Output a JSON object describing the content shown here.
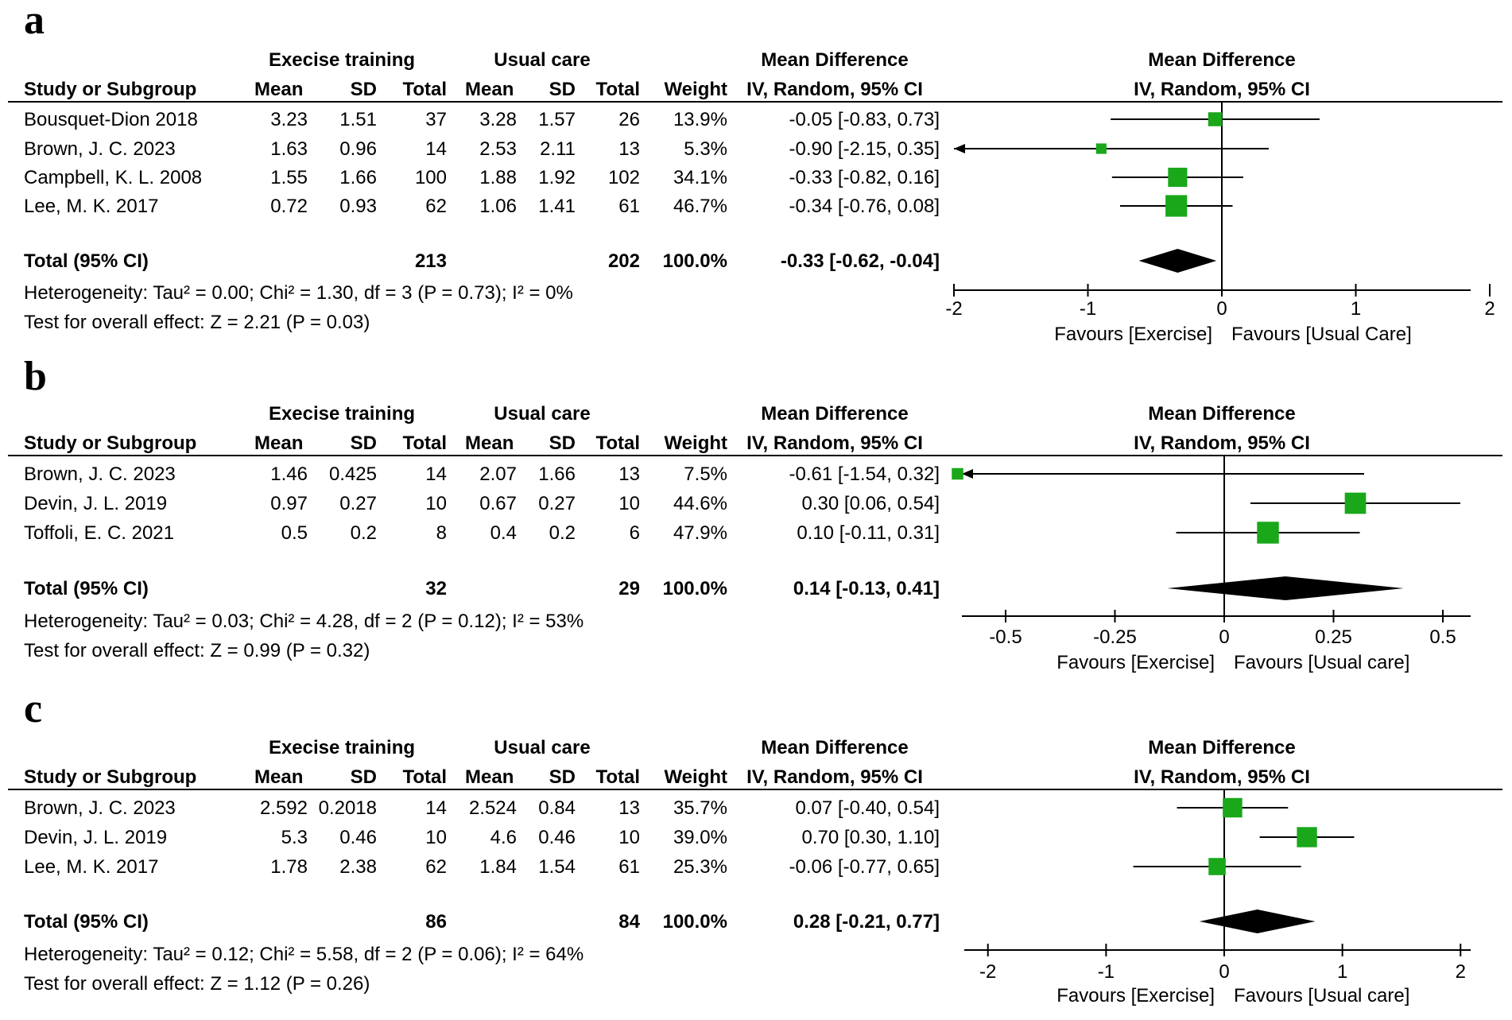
{
  "chart_data": [
    {
      "type": "forest",
      "panel_label": "a",
      "group_headers": {
        "experimental": "Execise training",
        "control": "Usual care"
      },
      "columns": [
        "Study or Subgroup",
        "Mean",
        "SD",
        "Total",
        "Mean",
        "SD",
        "Total",
        "Weight"
      ],
      "effect_header": [
        "Mean Difference",
        "IV, Random, 95% CI"
      ],
      "plot_header": [
        "Mean Difference",
        "IV, Random, 95% CI"
      ],
      "studies": [
        {
          "name": "Bousquet-Dion 2018",
          "exp_mean": "3.23",
          "exp_sd": "1.51",
          "exp_total": "37",
          "ctl_mean": "3.28",
          "ctl_sd": "1.57",
          "ctl_total": "26",
          "weight": "13.9%",
          "effect_text": "-0.05 [-0.83, 0.73]",
          "md": -0.05,
          "lo": -0.83,
          "hi": 0.73,
          "w": 13.9
        },
        {
          "name": "Brown, J. C. 2023",
          "exp_mean": "1.63",
          "exp_sd": "0.96",
          "exp_total": "14",
          "ctl_mean": "2.53",
          "ctl_sd": "2.11",
          "ctl_total": "13",
          "weight": "5.3%",
          "effect_text": "-0.90 [-2.15, 0.35]",
          "md": -0.9,
          "lo": -2.15,
          "hi": 0.35,
          "w": 5.3
        },
        {
          "name": "Campbell, K. L. 2008",
          "exp_mean": "1.55",
          "exp_sd": "1.66",
          "exp_total": "100",
          "ctl_mean": "1.88",
          "ctl_sd": "1.92",
          "ctl_total": "102",
          "weight": "34.1%",
          "effect_text": "-0.33 [-0.82, 0.16]",
          "md": -0.33,
          "lo": -0.82,
          "hi": 0.16,
          "w": 34.1
        },
        {
          "name": "Lee, M. K. 2017",
          "exp_mean": "0.72",
          "exp_sd": "0.93",
          "exp_total": "62",
          "ctl_mean": "1.06",
          "ctl_sd": "1.41",
          "ctl_total": "61",
          "weight": "46.7%",
          "effect_text": "-0.34 [-0.76, 0.08]",
          "md": -0.34,
          "lo": -0.76,
          "hi": 0.08,
          "w": 46.7
        }
      ],
      "total": {
        "label": "Total (95% CI)",
        "exp_total": "213",
        "ctl_total": "202",
        "weight": "100.0%",
        "effect_text": "-0.33 [-0.62, -0.04]",
        "md": -0.33,
        "lo": -0.62,
        "hi": -0.04
      },
      "heterogeneity": "Heterogeneity: Tau² = 0.00; Chi² = 1.30, df = 3 (P = 0.73); I² = 0%",
      "overall_effect": "Test for overall effect: Z = 2.21 (P = 0.03)",
      "xlim": [
        -2,
        2
      ],
      "ticks": [
        -2,
        -1,
        0,
        1,
        2
      ],
      "tick_labels": [
        "-2",
        "-1",
        "0",
        "1",
        "2"
      ],
      "favours_left": "Favours [Exercise]",
      "favours_right": "Favours [Usual Care]"
    },
    {
      "type": "forest",
      "panel_label": "b",
      "group_headers": {
        "experimental": "Execise training",
        "control": "Usual care"
      },
      "columns": [
        "Study or Subgroup",
        "Mean",
        "SD",
        "Total",
        "Mean",
        "SD",
        "Total",
        "Weight"
      ],
      "effect_header": [
        "Mean Difference",
        "IV, Random, 95% CI"
      ],
      "plot_header": [
        "Mean Difference",
        "IV, Random, 95% CI"
      ],
      "studies": [
        {
          "name": "Brown, J. C. 2023",
          "exp_mean": "1.46",
          "exp_sd": "0.425",
          "exp_total": "14",
          "ctl_mean": "2.07",
          "ctl_sd": "1.66",
          "ctl_total": "13",
          "weight": "7.5%",
          "effect_text": "-0.61 [-1.54, 0.32]",
          "md": -0.61,
          "lo": -1.54,
          "hi": 0.32,
          "w": 7.5
        },
        {
          "name": "Devin, J. L. 2019",
          "exp_mean": "0.97",
          "exp_sd": "0.27",
          "exp_total": "10",
          "ctl_mean": "0.67",
          "ctl_sd": "0.27",
          "ctl_total": "10",
          "weight": "44.6%",
          "effect_text": "0.30 [0.06, 0.54]",
          "md": 0.3,
          "lo": 0.06,
          "hi": 0.54,
          "w": 44.6
        },
        {
          "name": "Toffoli, E. C. 2021",
          "exp_mean": "0.5",
          "exp_sd": "0.2",
          "exp_total": "8",
          "ctl_mean": "0.4",
          "ctl_sd": "0.2",
          "ctl_total": "6",
          "weight": "47.9%",
          "effect_text": "0.10 [-0.11, 0.31]",
          "md": 0.1,
          "lo": -0.11,
          "hi": 0.31,
          "w": 47.9
        }
      ],
      "total": {
        "label": "Total (95% CI)",
        "exp_total": "32",
        "ctl_total": "29",
        "weight": "100.0%",
        "effect_text": "0.14 [-0.13, 0.41]",
        "md": 0.14,
        "lo": -0.13,
        "hi": 0.41
      },
      "heterogeneity": "Heterogeneity: Tau² = 0.03; Chi² = 4.28, df = 2 (P = 0.12); I² = 53%",
      "overall_effect": "Test for overall effect: Z = 0.99 (P = 0.32)",
      "xlim": [
        -0.6,
        0.6
      ],
      "ticks": [
        -0.5,
        -0.25,
        0,
        0.25,
        0.5
      ],
      "tick_labels": [
        "-0.5",
        "-0.25",
        "0",
        "0.25",
        "0.5"
      ],
      "favours_left": "Favours [Exercise]",
      "favours_right": "Favours [Usual care]"
    },
    {
      "type": "forest",
      "panel_label": "c",
      "group_headers": {
        "experimental": "Execise training",
        "control": "Usual care"
      },
      "columns": [
        "Study or Subgroup",
        "Mean",
        "SD",
        "Total",
        "Mean",
        "SD",
        "Total",
        "Weight"
      ],
      "effect_header": [
        "Mean Difference",
        "IV, Random, 95% CI"
      ],
      "plot_header": [
        "Mean Difference",
        "IV, Random, 95% CI"
      ],
      "studies": [
        {
          "name": "Brown, J. C. 2023",
          "exp_mean": "2.592",
          "exp_sd": "0.2018",
          "exp_total": "14",
          "ctl_mean": "2.524",
          "ctl_sd": "0.84",
          "ctl_total": "13",
          "weight": "35.7%",
          "effect_text": "0.07 [-0.40, 0.54]",
          "md": 0.07,
          "lo": -0.4,
          "hi": 0.54,
          "w": 35.7
        },
        {
          "name": "Devin, J. L. 2019",
          "exp_mean": "5.3",
          "exp_sd": "0.46",
          "exp_total": "10",
          "ctl_mean": "4.6",
          "ctl_sd": "0.46",
          "ctl_total": "10",
          "weight": "39.0%",
          "effect_text": "0.70 [0.30, 1.10]",
          "md": 0.7,
          "lo": 0.3,
          "hi": 1.1,
          "w": 39.0
        },
        {
          "name": "Lee, M. K. 2017",
          "exp_mean": "1.78",
          "exp_sd": "2.38",
          "exp_total": "62",
          "ctl_mean": "1.84",
          "ctl_sd": "1.54",
          "ctl_total": "61",
          "weight": "25.3%",
          "effect_text": "-0.06 [-0.77, 0.65]",
          "md": -0.06,
          "lo": -0.77,
          "hi": 0.65,
          "w": 25.3
        }
      ],
      "total": {
        "label": "Total (95% CI)",
        "exp_total": "86",
        "ctl_total": "84",
        "weight": "100.0%",
        "effect_text": "0.28 [-0.21, 0.77]",
        "md": 0.28,
        "lo": -0.21,
        "hi": 0.77
      },
      "heterogeneity": "Heterogeneity: Tau² = 0.12; Chi² = 5.58, df = 2 (P = 0.06); I² = 64%",
      "overall_effect": "Test for overall effect: Z = 1.12 (P = 0.26)",
      "xlim": [
        -2.2,
        2.2
      ],
      "ticks": [
        -2,
        -1,
        0,
        1,
        2
      ],
      "tick_labels": [
        "-2",
        "-1",
        "0",
        "1",
        "2"
      ],
      "favours_left": "Favours [Exercise]",
      "favours_right": "Favours [Usual care]"
    }
  ],
  "colors": {
    "marker": "#1aa71a",
    "diamond": "#000000",
    "line": "#000000"
  }
}
